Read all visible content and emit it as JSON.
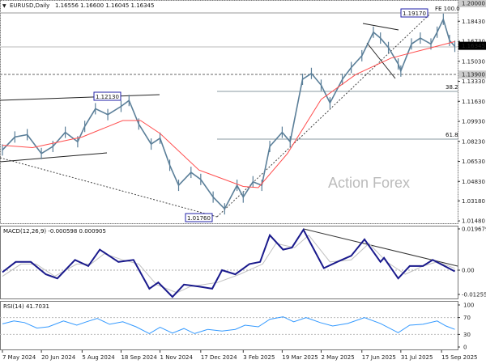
{
  "header": {
    "symbol": "EURUSD,Daily",
    "ohlc": "1.16556 1.16600 1.16045 1.16345"
  },
  "watermark": "Action Forex",
  "colors": {
    "price": "#5b7f99",
    "ma": "#ff4d4d",
    "macd": "#1a1a8c",
    "signal": "#c0c0c0",
    "rsi": "#3399ff",
    "label_box": "#2222aa"
  },
  "chart_data": [
    {
      "type": "line",
      "title": "EURUSD,Daily",
      "price_axis_ticks": [
        "1.20000",
        "1.18430",
        "1.16730",
        "1.15030",
        "1.13330",
        "1.11630",
        "1.09930",
        "1.08230",
        "1.06530",
        "1.04830",
        "1.03180",
        "1.01480"
      ],
      "highlighted_levels": {
        "fe_top": "1.20000",
        "current": "1.16345",
        "support": "1.13900"
      },
      "annotations": {
        "high": "1.19170",
        "mid_high": "1.12130",
        "low": "1.01760",
        "fe": "FE 100.0",
        "fib1": "38.2",
        "fib2": "61.8"
      },
      "ylim": [
        1.012,
        1.2005
      ],
      "series": [
        {
          "values": [
            [
              "2024-05-07",
              1.075
            ],
            [
              "2024-05-21",
              1.086
            ],
            [
              "2024-06-04",
              1.088
            ],
            [
              "2024-06-20",
              1.072
            ],
            [
              "2024-07-03",
              1.078
            ],
            [
              "2024-07-17",
              1.09
            ],
            [
              "2024-07-31",
              1.082
            ],
            [
              "2024-08-08",
              1.095
            ],
            [
              "2024-08-20",
              1.11
            ],
            [
              "2024-09-03",
              1.105
            ],
            [
              "2024-09-18",
              1.112
            ],
            [
              "2024-09-27",
              1.117
            ],
            [
              "2024-10-08",
              1.097
            ],
            [
              "2024-10-22",
              1.08
            ],
            [
              "2024-11-01",
              1.085
            ],
            [
              "2024-11-12",
              1.062
            ],
            [
              "2024-11-22",
              1.045
            ],
            [
              "2024-12-06",
              1.056
            ],
            [
              "2024-12-17",
              1.05
            ],
            [
              "2024-12-31",
              1.035
            ],
            [
              "2025-01-13",
              1.025
            ],
            [
              "2025-01-27",
              1.045
            ],
            [
              "2025-02-03",
              1.035
            ],
            [
              "2025-02-14",
              1.048
            ],
            [
              "2025-02-24",
              1.045
            ],
            [
              "2025-03-05",
              1.078
            ],
            [
              "2025-03-19",
              1.09
            ],
            [
              "2025-03-28",
              1.082
            ],
            [
              "2025-04-11",
              1.135
            ],
            [
              "2025-04-21",
              1.14
            ],
            [
              "2025-05-02",
              1.13
            ],
            [
              "2025-05-12",
              1.115
            ],
            [
              "2025-05-26",
              1.135
            ],
            [
              "2025-06-05",
              1.145
            ],
            [
              "2025-06-17",
              1.155
            ],
            [
              "2025-06-30",
              1.175
            ],
            [
              "2025-07-08",
              1.17
            ],
            [
              "2025-07-17",
              1.162
            ],
            [
              "2025-07-28",
              1.148
            ],
            [
              "2025-07-31",
              1.142
            ],
            [
              "2025-08-12",
              1.165
            ],
            [
              "2025-08-22",
              1.17
            ],
            [
              "2025-09-03",
              1.165
            ],
            [
              "2025-09-10",
              1.175
            ],
            [
              "2025-09-17",
              1.186
            ],
            [
              "2025-09-24",
              1.168
            ],
            [
              "2025-09-30",
              1.163
            ]
          ]
        },
        {
          "values": [
            [
              "2024-05-07",
              1.079
            ],
            [
              "2024-06-10",
              1.077
            ],
            [
              "2024-08-05",
              1.086
            ],
            [
              "2024-09-20",
              1.1
            ],
            [
              "2024-10-10",
              1.1
            ],
            [
              "2024-11-01",
              1.089
            ],
            [
              "2024-12-15",
              1.058
            ],
            [
              "2025-02-03",
              1.044
            ],
            [
              "2025-02-20",
              1.043
            ],
            [
              "2025-03-25",
              1.072
            ],
            [
              "2025-05-02",
              1.118
            ],
            [
              "2025-06-10",
              1.139
            ],
            [
              "2025-07-20",
              1.153
            ],
            [
              "2025-08-25",
              1.16
            ],
            [
              "2025-09-30",
              1.167
            ]
          ]
        }
      ]
    },
    {
      "type": "line",
      "title": "MACD(12,26,9) -0.000598 0.000905",
      "axis_ticks": [
        "0.019679",
        "0.00",
        "-0.012552"
      ],
      "ylim": [
        -0.0135,
        0.0205
      ],
      "series": [
        {
          "values": [
            [
              "2024-05-07",
              -0.001
            ],
            [
              "2024-05-22",
              0.004
            ],
            [
              "2024-06-08",
              0.004
            ],
            [
              "2024-06-25",
              -0.002
            ],
            [
              "2024-07-08",
              -0.004
            ],
            [
              "2024-07-28",
              0.005
            ],
            [
              "2024-08-12",
              0.002
            ],
            [
              "2024-08-25",
              0.01
            ],
            [
              "2024-09-15",
              0.004
            ],
            [
              "2024-10-02",
              0.005
            ],
            [
              "2024-10-20",
              -0.009
            ],
            [
              "2024-10-30",
              -0.006
            ],
            [
              "2024-11-15",
              -0.013
            ],
            [
              "2024-11-28",
              -0.007
            ],
            [
              "2024-12-15",
              -0.008
            ],
            [
              "2024-12-30",
              -0.009
            ],
            [
              "2025-01-10",
              0.0
            ],
            [
              "2025-01-25",
              -0.002
            ],
            [
              "2025-02-10",
              0.003
            ],
            [
              "2025-02-22",
              0.004
            ],
            [
              "2025-03-05",
              0.017
            ],
            [
              "2025-03-20",
              0.01
            ],
            [
              "2025-03-30",
              0.011
            ],
            [
              "2025-04-12",
              0.0197
            ],
            [
              "2025-05-05",
              0.001
            ],
            [
              "2025-05-20",
              0.004
            ],
            [
              "2025-06-05",
              0.007
            ],
            [
              "2025-06-20",
              0.015
            ],
            [
              "2025-07-08",
              0.004
            ],
            [
              "2025-07-12",
              0.006
            ],
            [
              "2025-07-28",
              -0.004
            ],
            [
              "2025-08-10",
              0.002
            ],
            [
              "2025-08-25",
              0.002
            ],
            [
              "2025-09-05",
              0.005
            ],
            [
              "2025-09-30",
              -0.0006
            ]
          ]
        },
        {
          "values": [
            [
              "2024-05-07",
              -0.003
            ],
            [
              "2024-05-28",
              0.003
            ],
            [
              "2024-06-14",
              0.003
            ],
            [
              "2024-07-05",
              -0.003
            ],
            [
              "2024-07-30",
              0.003
            ],
            [
              "2024-08-15",
              0.003
            ],
            [
              "2024-08-30",
              0.008
            ],
            [
              "2024-09-20",
              0.005
            ],
            [
              "2024-10-08",
              0.003
            ],
            [
              "2024-10-28",
              -0.007
            ],
            [
              "2024-11-20",
              -0.011
            ],
            [
              "2024-12-05",
              -0.008
            ],
            [
              "2025-01-05",
              -0.006
            ],
            [
              "2025-01-30",
              -0.002
            ],
            [
              "2025-02-25",
              0.003
            ],
            [
              "2025-03-12",
              0.013
            ],
            [
              "2025-04-02",
              0.011
            ],
            [
              "2025-04-18",
              0.017
            ],
            [
              "2025-05-12",
              0.004
            ],
            [
              "2025-06-05",
              0.005
            ],
            [
              "2025-06-25",
              0.013
            ],
            [
              "2025-07-15",
              0.004
            ],
            [
              "2025-08-05",
              -0.002
            ],
            [
              "2025-08-25",
              0.002
            ],
            [
              "2025-09-10",
              0.004
            ],
            [
              "2025-09-30",
              0.0009
            ]
          ]
        }
      ]
    },
    {
      "type": "line",
      "title": "RSI(14) 41.7031",
      "axis_ticks": [
        "100",
        "70",
        "30",
        "0"
      ],
      "ylim": [
        0,
        100
      ],
      "series": [
        {
          "values": [
            [
              "2024-05-07",
              55
            ],
            [
              "2024-05-20",
              62
            ],
            [
              "2024-06-01",
              58
            ],
            [
              "2024-06-15",
              45
            ],
            [
              "2024-06-28",
              48
            ],
            [
              "2024-07-15",
              62
            ],
            [
              "2024-07-30",
              52
            ],
            [
              "2024-08-10",
              60
            ],
            [
              "2024-08-22",
              68
            ],
            [
              "2024-09-05",
              54
            ],
            [
              "2024-09-20",
              60
            ],
            [
              "2024-10-05",
              48
            ],
            [
              "2024-10-20",
              32
            ],
            [
              "2024-11-01",
              47
            ],
            [
              "2024-11-15",
              33
            ],
            [
              "2024-11-28",
              44
            ],
            [
              "2024-12-10",
              32
            ],
            [
              "2024-12-25",
              42
            ],
            [
              "2025-01-10",
              38
            ],
            [
              "2025-01-25",
              42
            ],
            [
              "2025-02-05",
              52
            ],
            [
              "2025-02-20",
              48
            ],
            [
              "2025-03-05",
              66
            ],
            [
              "2025-03-20",
              72
            ],
            [
              "2025-04-01",
              60
            ],
            [
              "2025-04-15",
              70
            ],
            [
              "2025-05-01",
              58
            ],
            [
              "2025-05-15",
              50
            ],
            [
              "2025-06-01",
              56
            ],
            [
              "2025-06-20",
              70
            ],
            [
              "2025-07-08",
              56
            ],
            [
              "2025-07-28",
              34
            ],
            [
              "2025-08-10",
              52
            ],
            [
              "2025-08-25",
              54
            ],
            [
              "2025-09-10",
              62
            ],
            [
              "2025-09-20",
              50
            ],
            [
              "2025-09-30",
              42
            ]
          ]
        }
      ]
    }
  ],
  "x_axis_ticks": [
    "7 May 2024",
    "20 Jun 2024",
    "5 Aug 2024",
    "18 Sep 2024",
    "1 Nov 2024",
    "17 Dec 2024",
    "3 Feb 2025",
    "19 Mar 2025",
    "2 May 2025",
    "17 Jun 2025",
    "31 Jul 2025",
    "15 Sep 2025"
  ]
}
